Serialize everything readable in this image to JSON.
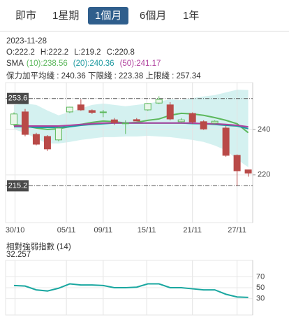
{
  "tabs": [
    "即市",
    "1星期",
    "1個月",
    "6個月",
    "1年"
  ],
  "active_tab": 2,
  "info": {
    "date": "2023-11-28",
    "ohlc": [
      "O:222.2",
      "H:222.2",
      "L:219.2",
      "C:220.8"
    ],
    "sma_label": "SMA",
    "band_legend": "保力加平均綫 : 240.36 下限綫 : 223.38 上限綫 : 257.34"
  },
  "chart_data": [
    {
      "type": "candlestick",
      "open": [
        242.2,
        247.7,
        237.8,
        236.9,
        235.4,
        247.7,
        250.8,
        248.3,
        247.4,
        244.2,
        242.6,
        244.3,
        248.6,
        251.6,
        250.8,
        243.4,
        247,
        243.4,
        242.8,
        240.6,
        228.6,
        222.2
      ],
      "high": [
        247.5,
        249,
        238.5,
        237.5,
        241.2,
        250,
        253.2,
        248.8,
        248.6,
        245,
        244,
        245,
        251.6,
        254.6,
        252,
        245,
        247.5,
        244,
        244,
        241.5,
        229,
        222.2
      ],
      "low": [
        241.5,
        237,
        233,
        230.5,
        234.8,
        247.2,
        248.2,
        246.8,
        245.4,
        242,
        238,
        243.5,
        248.2,
        251.2,
        244,
        243,
        242.5,
        239.8,
        242.4,
        228,
        215.2,
        219.2
      ],
      "close": [
        246.8,
        237.8,
        233.5,
        231.4,
        240.6,
        249.8,
        248.6,
        247.5,
        247.7,
        243,
        242.8,
        243.7,
        251.4,
        253.2,
        244.6,
        244.2,
        243.3,
        240.2,
        243.6,
        228.6,
        221.8,
        220.8
      ],
      "up_color": "#5cb85c",
      "down_color": "#b94a48",
      "series": [
        {
          "name": "(10):238.56",
          "color": "#5cb85c",
          "values": [
            242.2,
            241.5,
            240.6,
            240,
            240.3,
            241.2,
            242.2,
            243.1,
            243.7,
            243.4,
            242.8,
            243.1,
            244,
            244.6,
            246.2,
            247.1,
            246.8,
            246.2,
            245.2,
            244,
            242.5,
            238.56
          ]
        },
        {
          "name": "(20):240.36",
          "color": "#1e9aa0",
          "values": [
            241.2,
            241.2,
            240.9,
            240.9,
            240.9,
            241.2,
            241.8,
            242.2,
            242.5,
            242.8,
            242.8,
            242.8,
            242.8,
            242.8,
            242.8,
            242.8,
            242.6,
            242.5,
            242.2,
            241.8,
            241.5,
            240.36
          ]
        },
        {
          "name": "(50):241.17",
          "color": "#b0409e",
          "values": [
            241.5,
            241.5,
            241.5,
            241.5,
            241.5,
            241.8,
            242.2,
            242.5,
            242.8,
            242.8,
            242.8,
            242.8,
            242.8,
            242.8,
            242.8,
            242.8,
            242.8,
            242.5,
            242.5,
            242.2,
            241.8,
            241.17
          ]
        }
      ],
      "bands": {
        "color": "#cdeeed",
        "upper": [
          250.8,
          251.4,
          250.8,
          248.3,
          246.2,
          247.7,
          249.2,
          250.8,
          251.4,
          250.8,
          250.2,
          250.8,
          251.4,
          252.3,
          253.2,
          252.9,
          253.8,
          254.5,
          255.1,
          256.3,
          257.5,
          257.34
        ],
        "lower": [
          240,
          238.5,
          236,
          233.8,
          233.8,
          234.5,
          235.4,
          236,
          236.6,
          236.6,
          236.9,
          236.9,
          237.2,
          236.9,
          236.6,
          236,
          235.4,
          234.5,
          232.9,
          230.8,
          226.8,
          223.38
        ]
      },
      "levels": [
        253.6,
        215.2
      ],
      "xlim": [
        -0.75,
        21.4
      ],
      "xticks": [
        {
          "value": 0.1,
          "label": "30/10"
        },
        {
          "value": 4.7,
          "label": "05/11"
        },
        {
          "value": 8,
          "label": "09/11"
        },
        {
          "value": 11.9,
          "label": "15/11"
        },
        {
          "value": 16,
          "label": "21/11"
        },
        {
          "value": 20,
          "label": "27/11"
        }
      ],
      "ylim": [
        199,
        260.6
      ],
      "yticks": [
        220,
        240
      ],
      "grid": true
    },
    {
      "type": "line",
      "title": "相對強弱指數 (14)",
      "color": "#1aa7a0",
      "values": [
        54,
        53,
        46,
        44,
        49,
        57,
        55,
        55,
        54,
        50,
        50,
        51,
        57,
        57,
        50,
        50,
        48,
        46,
        46,
        38,
        33,
        32.257
      ],
      "xlim": [
        -0.75,
        21.4
      ],
      "ylim": [
        0,
        100
      ],
      "yticks": [
        30,
        50,
        70
      ],
      "grid": true
    }
  ]
}
